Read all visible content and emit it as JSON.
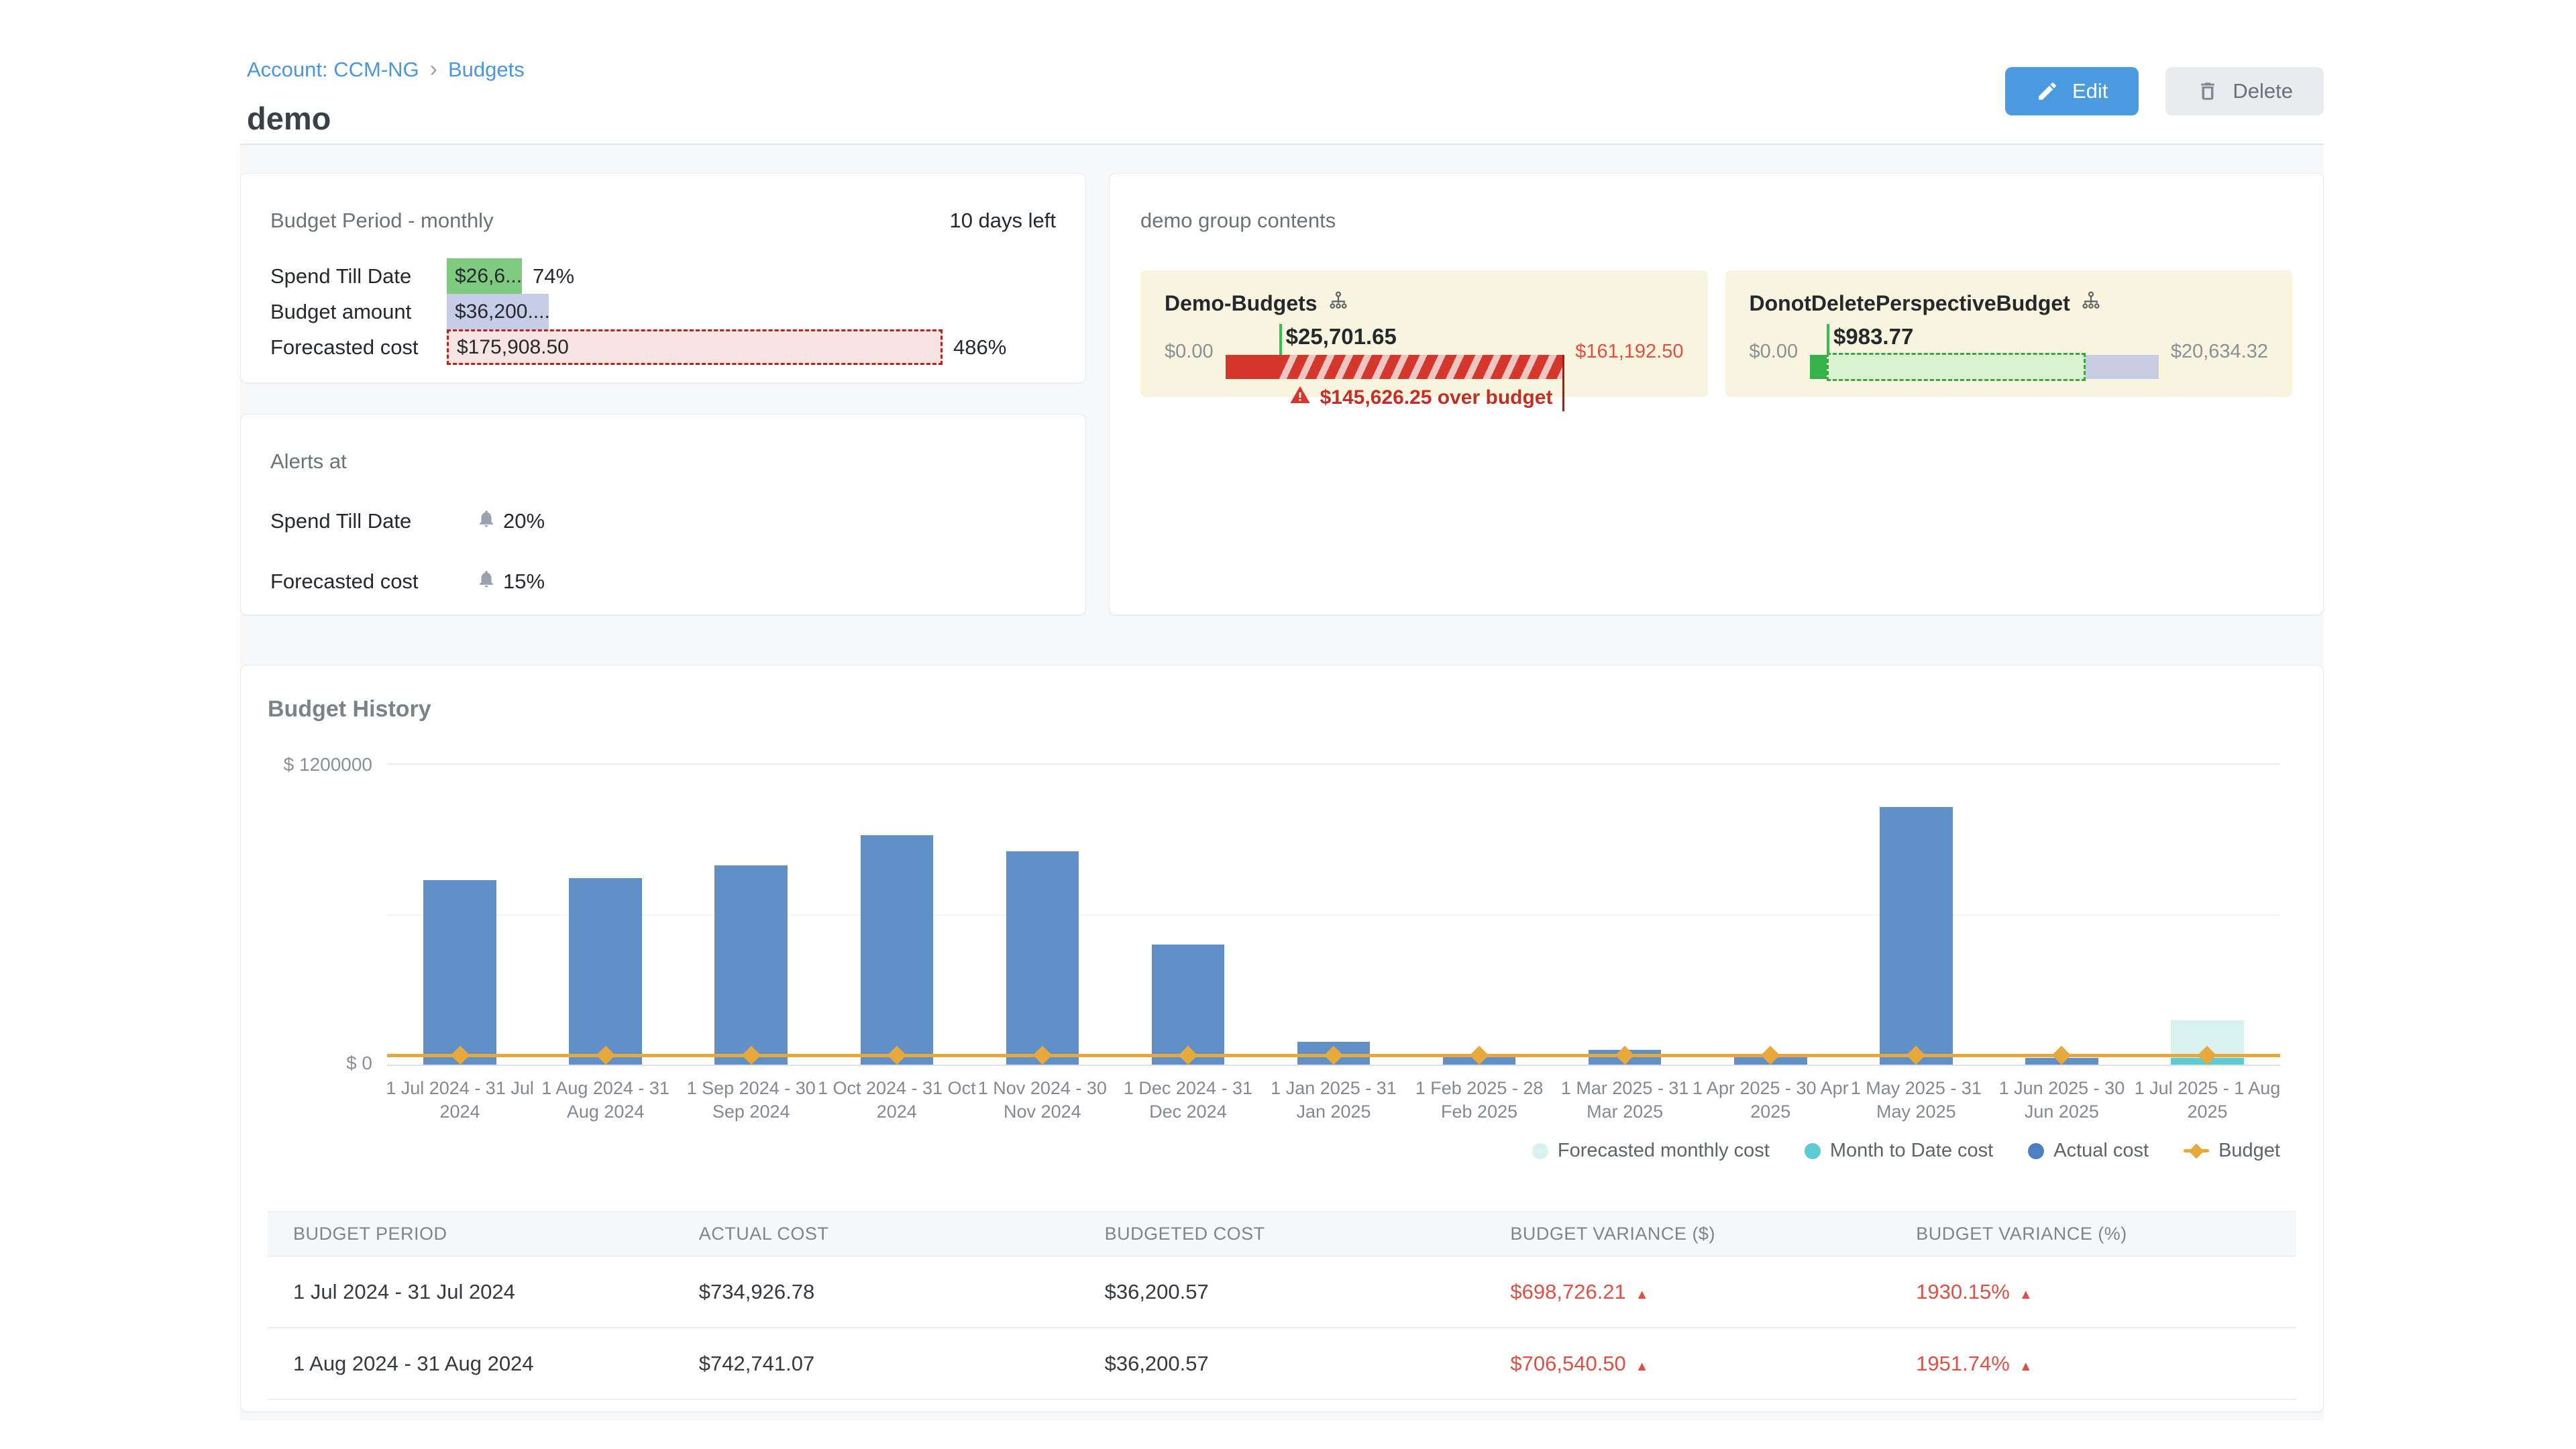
{
  "colors": {
    "link_blue": "#4a97de",
    "edit_button_bg": "#4a9be0",
    "delete_button_bg": "#e9ebef",
    "spend_bar_green": "#7ecb80",
    "budget_bar_lavender": "#c8cde7",
    "forecast_bar_bg": "#f7e3e1",
    "forecast_bar_border": "#b3261e",
    "tile_bg": "#f9f4dd",
    "over_budget_red": "#d6372c",
    "under_budget_green": "#35b34a",
    "actual_bar_blue": "#6190c7",
    "month_to_date_teal": "#5ecbd3",
    "forecast_cyan": "#d8f2f0",
    "budget_line_orange": "#e9a83c",
    "variance_red": "#dd5144"
  },
  "breadcrumb": {
    "account_link": "Account: CCM-NG",
    "separator": "›",
    "budgets_link": "Budgets"
  },
  "page": {
    "title": "demo"
  },
  "actions": {
    "edit_label": "Edit",
    "delete_label": "Delete"
  },
  "budget_period_card": {
    "title": "Budget Period - monthly",
    "days_left": "10 days left",
    "rows": [
      {
        "label": "Spend Till Date",
        "bar_text": "$26,6...",
        "suffix": "74%",
        "pct": 74,
        "style": "spend"
      },
      {
        "label": "Budget amount",
        "bar_text": "$36,200....",
        "suffix": "",
        "pct": 100,
        "style": "budget"
      },
      {
        "label": "Forecasted cost",
        "bar_text": "$175,908.50",
        "suffix": "486%",
        "pct": 486,
        "style": "forecast"
      }
    ]
  },
  "alerts_card": {
    "title": "Alerts at",
    "rows": [
      {
        "label": "Spend Till Date",
        "value": "20%"
      },
      {
        "label": "Forecasted cost",
        "value": "15%"
      }
    ]
  },
  "group_card": {
    "title": "demo group contents",
    "items": [
      {
        "name": "Demo-Budgets",
        "min_label": "$0.00",
        "max_label": "$161,192.50",
        "value_label": "$25,701.65",
        "value_pct": 15.9,
        "over_budget_text": "$145,626.25 over budget",
        "status": "over"
      },
      {
        "name": "DonotDeletePerspectiveBudget",
        "min_label": "$0.00",
        "max_label": "$20,634.32",
        "value_label": "$983.77",
        "value_pct": 4.8,
        "forecast_pct": 78,
        "status": "under"
      }
    ]
  },
  "chart_data": {
    "type": "bar",
    "title": "Budget History",
    "ylim": [
      0,
      1200000
    ],
    "ytick_labels": [
      "$ 1200000",
      "$ 0"
    ],
    "grid": "horizontal",
    "legend_position": "bottom-right",
    "categories": [
      "1 Jul 2024 - 31 Jul 2024",
      "1 Aug 2024 - 31 Aug 2024",
      "1 Sep 2024 - 30 Sep 2024",
      "1 Oct 2024 - 31 Oct 2024",
      "1 Nov 2024 - 30 Nov 2024",
      "1 Dec 2024 - 31 Dec 2024",
      "1 Jan 2025 - 31 Jan 2025",
      "1 Feb 2025 - 28 Feb 2025",
      "1 Mar 2025 - 31 Mar 2025",
      "1 Apr 2025 - 30 Apr 2025",
      "1 May 2025 - 31 May 2025",
      "1 Jun 2025 - 30 Jun 2025",
      "1 Jul 2025 - 1 Aug 2025"
    ],
    "series": [
      {
        "name": "Forecasted monthly cost",
        "values": [
          null,
          null,
          null,
          null,
          null,
          null,
          null,
          null,
          null,
          null,
          null,
          null,
          175908.5
        ]
      },
      {
        "name": "Month to Date cost",
        "values": [
          null,
          null,
          null,
          null,
          null,
          null,
          null,
          null,
          null,
          null,
          null,
          null,
          26600
        ]
      },
      {
        "name": "Actual cost",
        "values": [
          734926.78,
          742741.07,
          795000,
          915000,
          850000,
          478000,
          90000,
          30000,
          60000,
          33000,
          1025000,
          28000,
          null
        ]
      },
      {
        "name": "Budget",
        "values": [
          36200.57,
          36200.57,
          36200.57,
          36200.57,
          36200.57,
          36200.57,
          36200.57,
          36200.57,
          36200.57,
          36200.57,
          36200.57,
          36200.57,
          36200.57
        ]
      }
    ]
  },
  "table": {
    "headers": [
      "BUDGET PERIOD",
      "ACTUAL COST",
      "BUDGETED COST",
      "BUDGET VARIANCE ($)",
      "BUDGET VARIANCE (%)"
    ],
    "rows": [
      {
        "period": "1 Jul 2024 - 31 Jul 2024",
        "actual": "$734,926.78",
        "budgeted": "$36,200.57",
        "variance_usd": "$698,726.21",
        "variance_pct": "1930.15%",
        "direction": "up"
      },
      {
        "period": "1 Aug 2024 - 31 Aug 2024",
        "actual": "$742,741.07",
        "budgeted": "$36,200.57",
        "variance_usd": "$706,540.50",
        "variance_pct": "1951.74%",
        "direction": "up"
      }
    ]
  }
}
